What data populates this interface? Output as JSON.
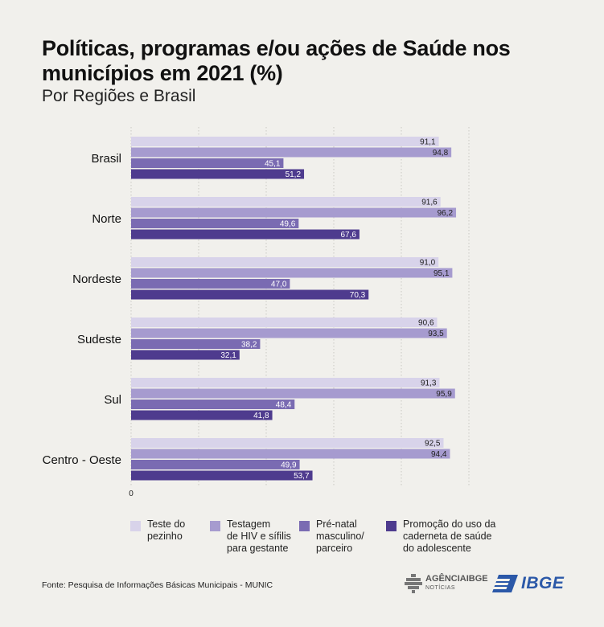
{
  "title": "Políticas, programas e/ou ações de Saúde nos municípios em 2021 (%)",
  "subtitle": "Por Regiões e Brasil",
  "source": "Fonte: Pesquisa de Informações Básicas Municipais - MUNIC",
  "logos": {
    "agencia": "AGÊNCIAIBGE",
    "agencia_sub": "NOTÍCIAS",
    "ibge": "IBGE"
  },
  "colors": {
    "s1": "#d8d3ea",
    "s2": "#a69bcf",
    "s3": "#7a6bb2",
    "s4": "#4e3b8e",
    "grid": "#c9c7c2"
  },
  "chart_data": {
    "type": "bar",
    "orientation": "horizontal",
    "categories": [
      "Brasil",
      "Norte",
      "Nordeste",
      "Sudeste",
      "Sul",
      "Centro - Oeste"
    ],
    "series": [
      {
        "name": "Teste do pezinho",
        "values": [
          91.1,
          91.6,
          91.0,
          90.6,
          91.3,
          92.5
        ],
        "labels": [
          "91,1",
          "91,6",
          "91,0",
          "90,6",
          "91,3",
          "92,5"
        ]
      },
      {
        "name": "Testagem de HIV e sífilis para gestante",
        "values": [
          94.8,
          96.2,
          95.1,
          93.5,
          95.9,
          94.4
        ],
        "labels": [
          "94,8",
          "96,2",
          "95,1",
          "93,5",
          "95,9",
          "94,4"
        ]
      },
      {
        "name": "Pré-natal masculino/ parceiro",
        "values": [
          45.1,
          49.6,
          47.0,
          38.2,
          48.4,
          49.9
        ],
        "labels": [
          "45,1",
          "49,6",
          "47,0",
          "38,2",
          "48,4",
          "49,9"
        ]
      },
      {
        "name": "Promoção do uso da caderneta de saúde do adolescente",
        "values": [
          51.2,
          67.6,
          70.3,
          32.1,
          41.8,
          53.7
        ],
        "labels": [
          "51,2",
          "67,6",
          "70,3",
          "32,1",
          "41,8",
          "53,7"
        ]
      }
    ],
    "x_tick_label": "0",
    "xlim": [
      0,
      100
    ],
    "legend": [
      "Teste do\npezinho",
      "Testagem\nde HIV e sífilis\npara gestante",
      "Pré-natal\nmasculino/\nparceiro",
      "Promoção do uso da\ncaderneta de saúde\ndo adolescente"
    ],
    "legend_position": "bottom"
  }
}
